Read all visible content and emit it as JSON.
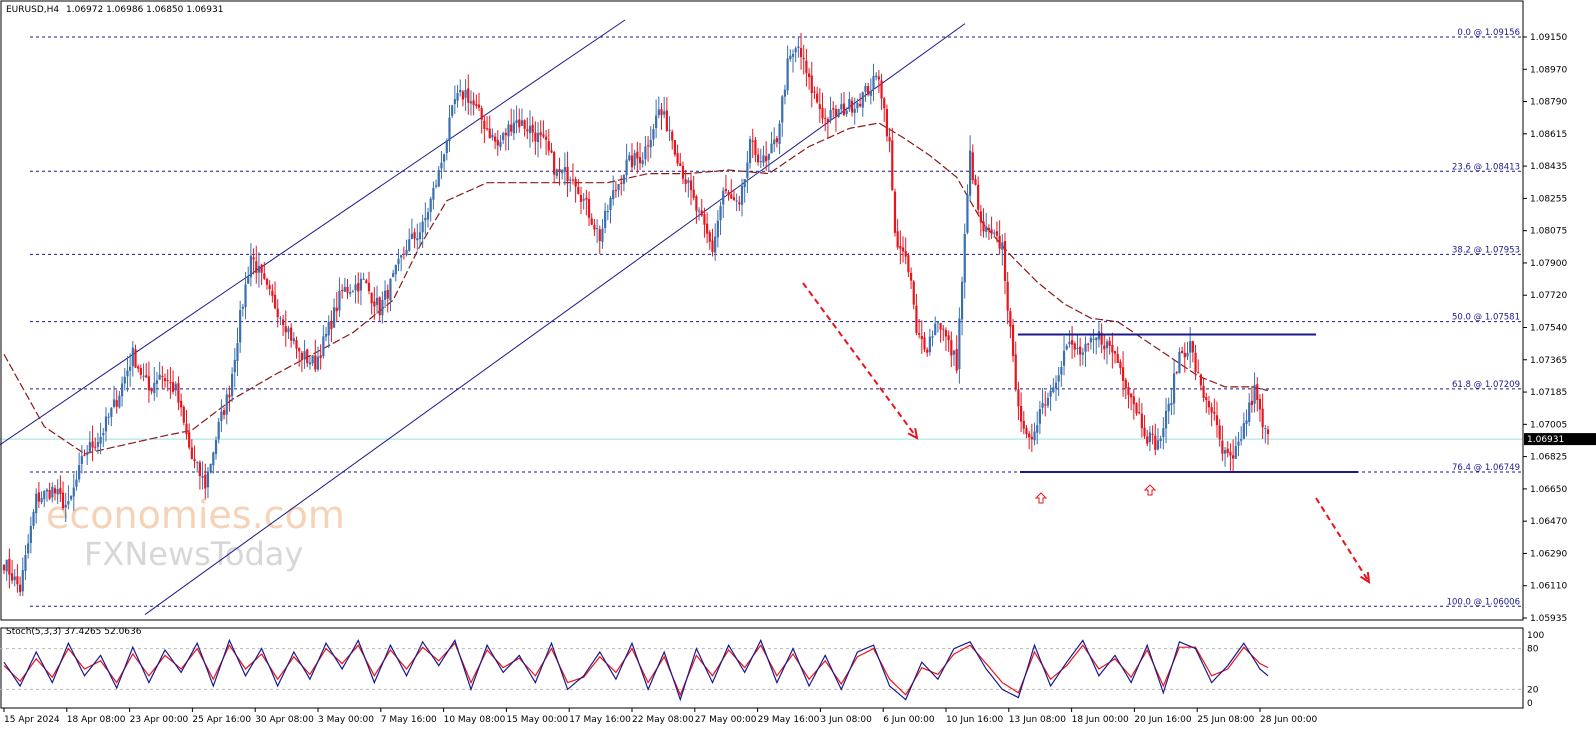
{
  "header": {
    "symbol": "EURUSD,H4",
    "ohlc": "1.06972 1.06986 1.06850 1.06931",
    "stoch_label": "Stoch(5,3,3) 37.4265 52.0636"
  },
  "watermark": {
    "brand": "economies.com",
    "sub": "FXNewsToday"
  },
  "colors": {
    "bull": "#3a6fb0",
    "bear": "#e8141e",
    "ma": "#8b1a1a",
    "channel": "#1a1a8c",
    "fib": "#1a1a8c",
    "arrow": "#e8141e",
    "current_line": "#9be0e0",
    "stoch_main": "#1a1a8c",
    "stoch_signal": "#e8141e"
  },
  "chart_data": {
    "type": "candlestick",
    "title": "EURUSD,H4",
    "ylim": [
      1.0593,
      1.0925
    ],
    "y_ticks": [
      "1.09150",
      "1.08970",
      "1.08790",
      "1.08615",
      "1.08435",
      "1.08255",
      "1.08075",
      "1.07900",
      "1.07720",
      "1.07540",
      "1.07365",
      "1.07185",
      "1.07005",
      "1.06825",
      "1.06650",
      "1.06470",
      "1.06290",
      "1.06110",
      "1.05935"
    ],
    "x_ticks": [
      "15 Apr 2024",
      "18 Apr 08:00",
      "23 Apr 00:00",
      "25 Apr 16:00",
      "30 Apr 08:00",
      "3 May 00:00",
      "7 May 16:00",
      "10 May 08:00",
      "15 May 00:00",
      "17 May 16:00",
      "22 May 08:00",
      "27 May 00:00",
      "29 May 16:00",
      "3 Jun 08:00",
      "6 Jun 00:00",
      "10 Jun 16:00",
      "13 Jun 08:00",
      "18 Jun 00:00",
      "20 Jun 16:00",
      "25 Jun 08:00",
      "28 Jun 00:00"
    ],
    "current_price": "1.06931",
    "fib_levels": [
      {
        "label": "0.0 @ 1.09156",
        "price": 1.09156
      },
      {
        "label": "23.6 @ 1.08413",
        "price": 1.08413
      },
      {
        "label": "38.2 @ 1.07953",
        "price": 1.07953
      },
      {
        "label": "50.0 @ 1.07581",
        "price": 1.07581
      },
      {
        "label": "61.8 @ 1.07209",
        "price": 1.07209
      },
      {
        "label": "76.4 @ 1.06749",
        "price": 1.06749
      },
      {
        "label": "100.0 @ 1.06006",
        "price": 1.06006
      }
    ],
    "range_box": {
      "top": 1.0751,
      "bottom": 1.06749
    },
    "close_anchors": [
      [
        0,
        1.0625
      ],
      [
        6,
        1.061
      ],
      [
        12,
        1.066
      ],
      [
        18,
        1.0665
      ],
      [
        24,
        1.0655
      ],
      [
        30,
        1.0685
      ],
      [
        36,
        1.0695
      ],
      [
        42,
        1.0715
      ],
      [
        48,
        1.074
      ],
      [
        54,
        1.072
      ],
      [
        58,
        1.073
      ],
      [
        64,
        1.072
      ],
      [
        70,
        1.0682
      ],
      [
        75,
        1.0668
      ],
      [
        80,
        1.07
      ],
      [
        84,
        1.072
      ],
      [
        88,
        1.076
      ],
      [
        92,
        1.0795
      ],
      [
        98,
        1.0775
      ],
      [
        104,
        1.076
      ],
      [
        110,
        1.074
      ],
      [
        116,
        1.0735
      ],
      [
        120,
        1.075
      ],
      [
        126,
        1.0775
      ],
      [
        134,
        1.078
      ],
      [
        140,
        1.0765
      ],
      [
        146,
        1.0785
      ],
      [
        150,
        1.08
      ],
      [
        156,
        1.081
      ],
      [
        162,
        1.084
      ],
      [
        168,
        1.088
      ],
      [
        172,
        1.0885
      ],
      [
        178,
        1.087
      ],
      [
        184,
        1.0855
      ],
      [
        190,
        1.087
      ],
      [
        196,
        1.0865
      ],
      [
        202,
        1.0855
      ],
      [
        206,
        1.084
      ],
      [
        212,
        1.084
      ],
      [
        216,
        1.0825
      ],
      [
        222,
        1.0805
      ],
      [
        226,
        1.0825
      ],
      [
        232,
        1.0845
      ],
      [
        238,
        1.085
      ],
      [
        244,
        1.0875
      ],
      [
        248,
        1.0865
      ],
      [
        252,
        1.0845
      ],
      [
        258,
        1.082
      ],
      [
        264,
        1.0798
      ],
      [
        268,
        1.083
      ],
      [
        274,
        1.082
      ],
      [
        278,
        1.0855
      ],
      [
        284,
        1.0845
      ],
      [
        288,
        1.086
      ],
      [
        292,
        1.09
      ],
      [
        296,
        1.091
      ],
      [
        300,
        1.089
      ],
      [
        306,
        1.087
      ],
      [
        312,
        1.0875
      ],
      [
        318,
        1.088
      ],
      [
        324,
        1.089
      ],
      [
        326,
        1.0895
      ],
      [
        330,
        1.0855
      ],
      [
        332,
        1.0805
      ],
      [
        334,
        1.08
      ],
      [
        338,
        1.078
      ],
      [
        340,
        1.075
      ],
      [
        344,
        1.0745
      ],
      [
        348,
        1.076
      ],
      [
        352,
        1.0745
      ],
      [
        355,
        1.0735
      ],
      [
        360,
        1.085
      ],
      [
        364,
        1.081
      ],
      [
        368,
        1.0805
      ],
      [
        372,
        1.08
      ],
      [
        376,
        1.0735
      ],
      [
        380,
        1.0695
      ],
      [
        382,
        1.069
      ],
      [
        386,
        1.071
      ],
      [
        390,
        1.072
      ],
      [
        396,
        1.0745
      ],
      [
        402,
        1.074
      ],
      [
        408,
        1.075
      ],
      [
        414,
        1.074
      ],
      [
        418,
        1.0725
      ],
      [
        422,
        1.071
      ],
      [
        426,
        1.0695
      ],
      [
        430,
        1.069
      ],
      [
        434,
        1.071
      ],
      [
        438,
        1.074
      ],
      [
        442,
        1.0745
      ],
      [
        446,
        1.072
      ],
      [
        450,
        1.071
      ],
      [
        454,
        1.0685
      ],
      [
        458,
        1.068
      ],
      [
        462,
        1.07
      ],
      [
        466,
        1.072
      ],
      [
        469,
        1.07
      ],
      [
        471,
        1.0693
      ]
    ],
    "ma_anchors": [
      [
        0,
        1.074
      ],
      [
        15,
        1.07
      ],
      [
        30,
        1.0685
      ],
      [
        45,
        1.069
      ],
      [
        60,
        1.0695
      ],
      [
        70,
        1.0698
      ],
      [
        85,
        1.0715
      ],
      [
        100,
        1.0728
      ],
      [
        115,
        1.074
      ],
      [
        130,
        1.0752
      ],
      [
        145,
        1.077
      ],
      [
        155,
        1.08
      ],
      [
        165,
        1.0825
      ],
      [
        180,
        1.0835
      ],
      [
        195,
        1.0835
      ],
      [
        210,
        1.0835
      ],
      [
        225,
        1.0835
      ],
      [
        240,
        1.084
      ],
      [
        255,
        1.084
      ],
      [
        270,
        1.0842
      ],
      [
        285,
        1.084
      ],
      [
        300,
        1.0855
      ],
      [
        315,
        1.0865
      ],
      [
        326,
        1.0868
      ],
      [
        335,
        1.086
      ],
      [
        345,
        1.085
      ],
      [
        355,
        1.0838
      ],
      [
        365,
        1.0812
      ],
      [
        375,
        1.0795
      ],
      [
        385,
        1.078
      ],
      [
        395,
        1.0768
      ],
      [
        405,
        1.076
      ],
      [
        415,
        1.0758
      ],
      [
        425,
        1.0748
      ],
      [
        435,
        1.0738
      ],
      [
        445,
        1.0728
      ],
      [
        455,
        1.0722
      ],
      [
        465,
        1.0722
      ],
      [
        471,
        1.072
      ]
    ],
    "candle_count": 472,
    "stoch_levels": {
      "upper": 80,
      "lower": 20
    },
    "stoch_axis": [
      "100",
      "80",
      "20",
      "0"
    ],
    "stoch_main_anchors": [
      [
        0,
        60
      ],
      [
        6,
        25
      ],
      [
        12,
        75
      ],
      [
        18,
        30
      ],
      [
        24,
        88
      ],
      [
        30,
        40
      ],
      [
        36,
        70
      ],
      [
        42,
        22
      ],
      [
        48,
        82
      ],
      [
        54,
        30
      ],
      [
        60,
        78
      ],
      [
        66,
        45
      ],
      [
        72,
        88
      ],
      [
        78,
        25
      ],
      [
        84,
        92
      ],
      [
        90,
        40
      ],
      [
        96,
        80
      ],
      [
        102,
        25
      ],
      [
        108,
        75
      ],
      [
        114,
        35
      ],
      [
        120,
        88
      ],
      [
        126,
        50
      ],
      [
        132,
        92
      ],
      [
        138,
        30
      ],
      [
        144,
        85
      ],
      [
        150,
        40
      ],
      [
        156,
        90
      ],
      [
        162,
        55
      ],
      [
        168,
        92
      ],
      [
        174,
        20
      ],
      [
        180,
        85
      ],
      [
        186,
        45
      ],
      [
        192,
        70
      ],
      [
        198,
        30
      ],
      [
        204,
        88
      ],
      [
        210,
        20
      ],
      [
        216,
        40
      ],
      [
        222,
        75
      ],
      [
        228,
        35
      ],
      [
        234,
        88
      ],
      [
        240,
        20
      ],
      [
        246,
        75
      ],
      [
        252,
        5
      ],
      [
        258,
        80
      ],
      [
        264,
        30
      ],
      [
        270,
        85
      ],
      [
        276,
        45
      ],
      [
        282,
        92
      ],
      [
        288,
        30
      ],
      [
        294,
        80
      ],
      [
        300,
        25
      ],
      [
        306,
        70
      ],
      [
        312,
        20
      ],
      [
        318,
        75
      ],
      [
        324,
        85
      ],
      [
        330,
        25
      ],
      [
        336,
        5
      ],
      [
        342,
        60
      ],
      [
        348,
        35
      ],
      [
        354,
        80
      ],
      [
        360,
        90
      ],
      [
        366,
        50
      ],
      [
        372,
        20
      ],
      [
        378,
        8
      ],
      [
        384,
        85
      ],
      [
        390,
        25
      ],
      [
        396,
        60
      ],
      [
        402,
        92
      ],
      [
        408,
        40
      ],
      [
        414,
        70
      ],
      [
        420,
        30
      ],
      [
        426,
        85
      ],
      [
        432,
        15
      ],
      [
        438,
        90
      ],
      [
        444,
        80
      ],
      [
        450,
        30
      ],
      [
        456,
        55
      ],
      [
        462,
        88
      ],
      [
        468,
        50
      ],
      [
        471,
        40
      ]
    ],
    "stoch_signal_anchors": [
      [
        0,
        55
      ],
      [
        6,
        32
      ],
      [
        12,
        65
      ],
      [
        18,
        38
      ],
      [
        24,
        80
      ],
      [
        30,
        50
      ],
      [
        36,
        62
      ],
      [
        42,
        30
      ],
      [
        48,
        72
      ],
      [
        54,
        40
      ],
      [
        60,
        70
      ],
      [
        66,
        50
      ],
      [
        72,
        80
      ],
      [
        78,
        35
      ],
      [
        84,
        85
      ],
      [
        90,
        50
      ],
      [
        96,
        72
      ],
      [
        102,
        35
      ],
      [
        108,
        68
      ],
      [
        114,
        42
      ],
      [
        120,
        80
      ],
      [
        126,
        58
      ],
      [
        132,
        85
      ],
      [
        138,
        40
      ],
      [
        144,
        78
      ],
      [
        150,
        50
      ],
      [
        156,
        82
      ],
      [
        162,
        62
      ],
      [
        168,
        88
      ],
      [
        174,
        30
      ],
      [
        180,
        78
      ],
      [
        186,
        52
      ],
      [
        192,
        66
      ],
      [
        198,
        40
      ],
      [
        204,
        80
      ],
      [
        210,
        30
      ],
      [
        216,
        38
      ],
      [
        222,
        68
      ],
      [
        228,
        45
      ],
      [
        234,
        80
      ],
      [
        240,
        30
      ],
      [
        246,
        68
      ],
      [
        252,
        12
      ],
      [
        258,
        70
      ],
      [
        264,
        40
      ],
      [
        270,
        78
      ],
      [
        276,
        52
      ],
      [
        282,
        85
      ],
      [
        288,
        40
      ],
      [
        294,
        72
      ],
      [
        300,
        35
      ],
      [
        306,
        62
      ],
      [
        312,
        28
      ],
      [
        318,
        68
      ],
      [
        324,
        80
      ],
      [
        330,
        35
      ],
      [
        336,
        12
      ],
      [
        342,
        52
      ],
      [
        348,
        42
      ],
      [
        354,
        72
      ],
      [
        360,
        85
      ],
      [
        366,
        58
      ],
      [
        372,
        30
      ],
      [
        378,
        15
      ],
      [
        384,
        75
      ],
      [
        390,
        35
      ],
      [
        396,
        55
      ],
      [
        402,
        85
      ],
      [
        408,
        50
      ],
      [
        414,
        65
      ],
      [
        420,
        38
      ],
      [
        426,
        78
      ],
      [
        432,
        25
      ],
      [
        438,
        82
      ],
      [
        444,
        82
      ],
      [
        450,
        40
      ],
      [
        456,
        50
      ],
      [
        462,
        82
      ],
      [
        468,
        58
      ],
      [
        471,
        52
      ]
    ]
  }
}
